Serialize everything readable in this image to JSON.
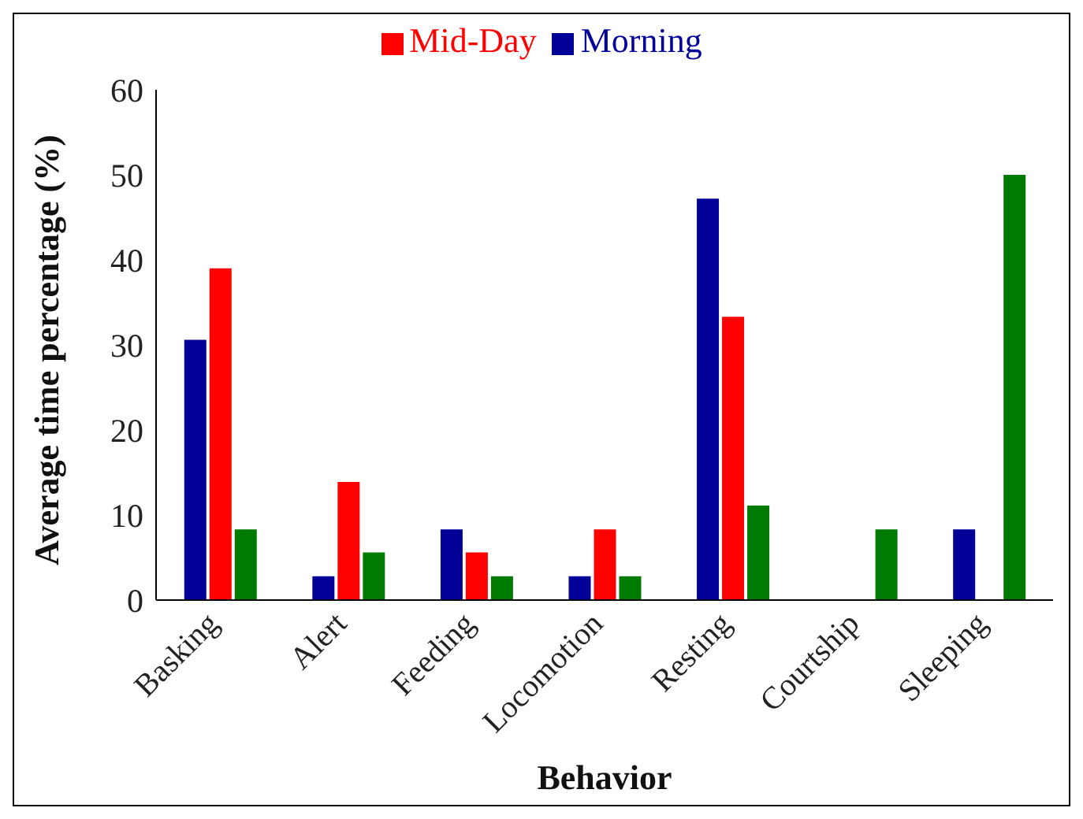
{
  "chart_data": {
    "type": "bar",
    "xlabel": "Behavior",
    "ylabel": "Average time percentage (%)",
    "categories": [
      "Basking",
      "Alert",
      "Feeding",
      "Locomotion",
      "Resting",
      "Courtship",
      "Sleeping"
    ],
    "series": [
      {
        "name": "Morning",
        "color": "#000099",
        "values": [
          30.6,
          2.8,
          8.3,
          2.8,
          47.2,
          0,
          8.3
        ]
      },
      {
        "name": "Mid-Day",
        "color": "#ff0000",
        "values": [
          39,
          13.9,
          5.6,
          8.3,
          33.3,
          0,
          0
        ]
      },
      {
        "color": "#007a00",
        "values": [
          8.3,
          5.6,
          2.8,
          2.8,
          11.1,
          8.3,
          50
        ]
      }
    ],
    "ylim": [
      0,
      60
    ],
    "yticks": [
      0,
      10,
      20,
      30,
      40,
      50,
      60
    ],
    "grid": false,
    "legend": "top"
  }
}
